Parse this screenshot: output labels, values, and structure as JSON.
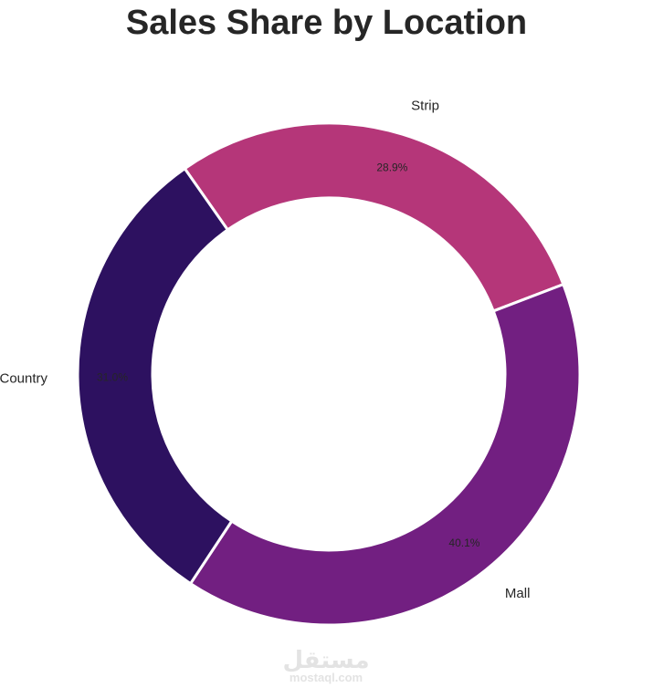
{
  "chart_data": {
    "type": "pie",
    "donut": true,
    "title": "Sales Share by Location",
    "categories": [
      "Strip",
      "Mall",
      "Country"
    ],
    "values": [
      28.9,
      40.1,
      31.0
    ],
    "percent_labels": [
      "28.9%",
      "40.1%",
      "31.0%"
    ],
    "colors": [
      "#b53679",
      "#721f81",
      "#2d1160"
    ],
    "start_angle_deg": 125,
    "direction": "clockwise"
  },
  "watermark": {
    "arabic": "مستقل",
    "latin": "mostaql.com"
  }
}
